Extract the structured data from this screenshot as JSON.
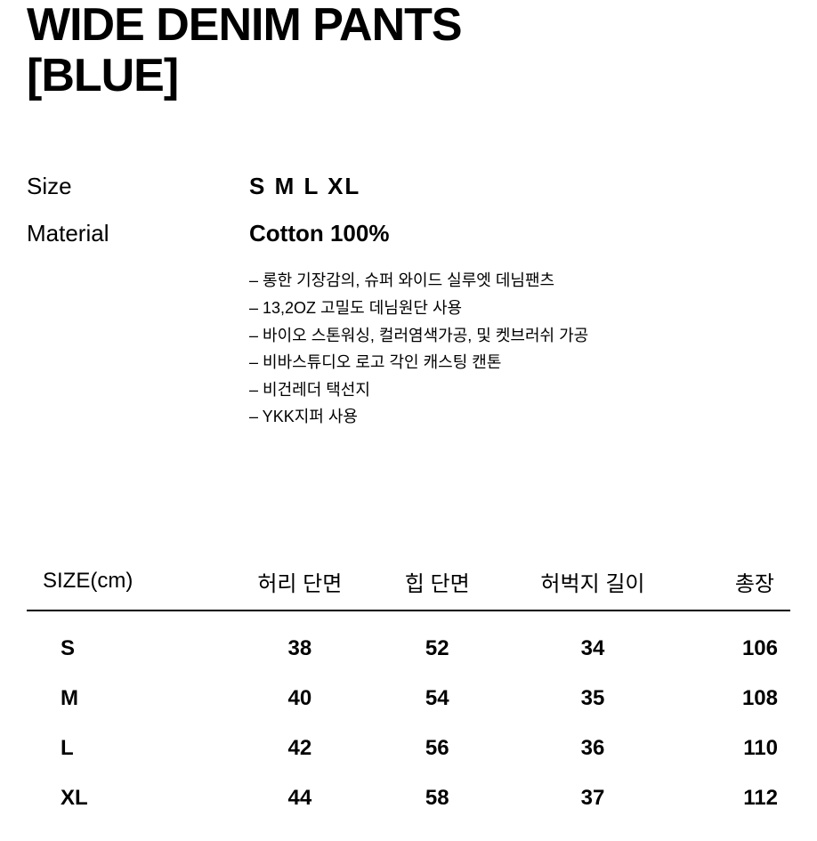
{
  "title_line1": "WIDE DENIM PANTS",
  "title_line2": "[BLUE]",
  "info": {
    "size_label": "Size",
    "size_value": "S  M  L  XL",
    "material_label": "Material",
    "material_value": "Cotton 100%"
  },
  "details": [
    "– 롱한 기장감의, 슈퍼 와이드 실루엣 데님팬츠",
    "– 13,2OZ 고밀도 데님원단 사용",
    "– 바이오 스톤워싱, 컬러염색가공, 및 켓브러쉬 가공",
    "– 비바스튜디오 로고 각인 캐스팅 캔톤",
    "– 비건레더 택선지",
    "– YKK지퍼 사용"
  ],
  "size_table": {
    "columns": [
      "SIZE(cm)",
      "허리 단면",
      "힙 단면",
      "허벅지 길이",
      "총장"
    ],
    "rows": [
      [
        "S",
        "38",
        "52",
        "34",
        "106"
      ],
      [
        "M",
        "40",
        "54",
        "35",
        "108"
      ],
      [
        "L",
        "42",
        "56",
        "36",
        "110"
      ],
      [
        "XL",
        "44",
        "58",
        "37",
        "112"
      ]
    ],
    "header_fontsize": 24,
    "cell_fontsize": 24,
    "border_color": "#000000",
    "background_color": "#ffffff"
  },
  "colors": {
    "text": "#000000",
    "background": "#ffffff"
  }
}
